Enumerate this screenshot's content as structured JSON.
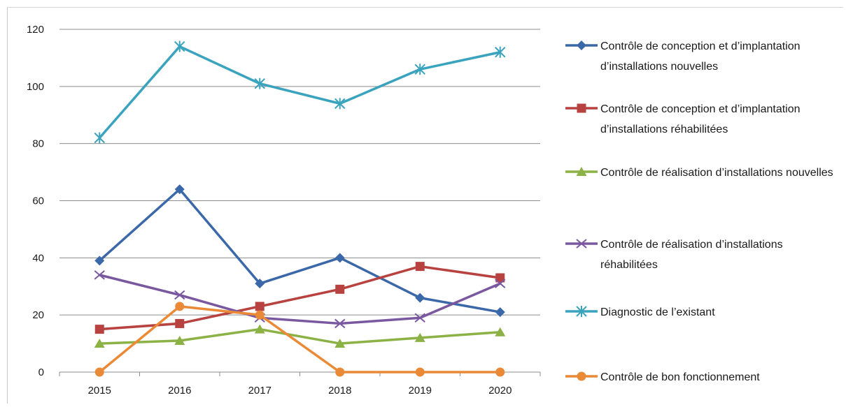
{
  "chart_data": {
    "type": "line",
    "x": [
      "2015",
      "2016",
      "2017",
      "2018",
      "2019",
      "2020"
    ],
    "ylim": [
      0,
      120
    ],
    "yticks": [
      0,
      20,
      40,
      60,
      80,
      100,
      120
    ],
    "grid": "horizontal",
    "legend_position": "right",
    "series": [
      {
        "name": "Contrôle de conception et d’implantation d’installations nouvelles",
        "color": "#3b68a8",
        "marker": "diamond",
        "values": [
          39,
          64,
          31,
          40,
          26,
          21
        ]
      },
      {
        "name": "Contrôle de conception et d’implantation d’installations réhabilitées",
        "color": "#b84240",
        "marker": "square",
        "values": [
          15,
          17,
          23,
          29,
          37,
          33
        ]
      },
      {
        "name": "Contrôle de réalisation d’installations nouvelles",
        "color": "#8cb246",
        "marker": "triangle",
        "values": [
          10,
          11,
          15,
          10,
          12,
          14
        ]
      },
      {
        "name": "Contrôle de réalisation d’installations réhabilitées",
        "color": "#7a58a0",
        "marker": "x",
        "values": [
          34,
          27,
          19,
          17,
          19,
          31
        ]
      },
      {
        "name": "Diagnostic de l’existant",
        "color": "#3aa3bd",
        "marker": "star",
        "values": [
          82,
          114,
          101,
          94,
          106,
          112
        ]
      },
      {
        "name": "Contrôle de bon fonctionnement",
        "color": "#ea8a36",
        "marker": "circle",
        "values": [
          0,
          23,
          20,
          0,
          0,
          0
        ]
      }
    ]
  }
}
